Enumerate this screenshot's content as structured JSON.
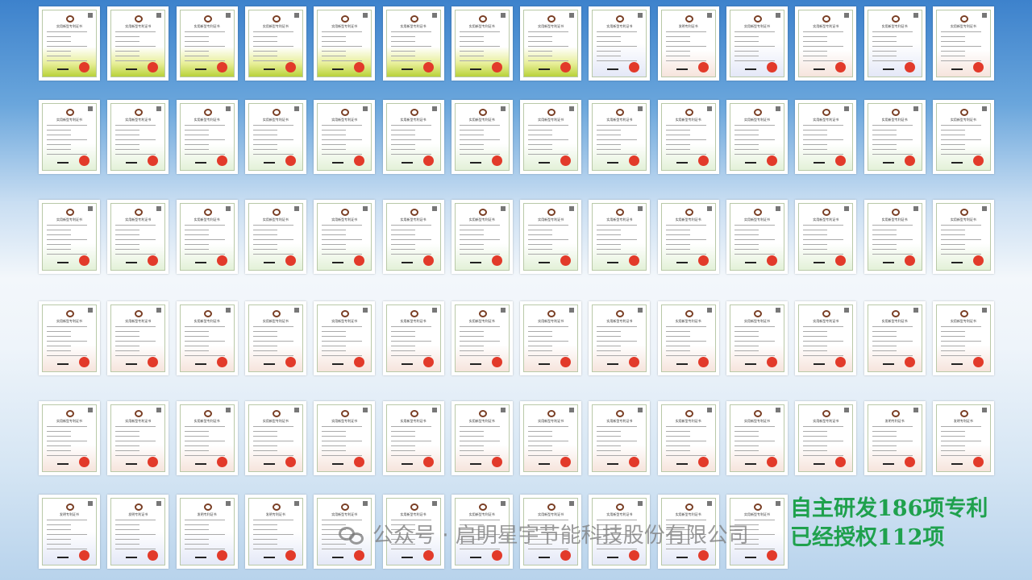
{
  "row_counts": [
    14,
    14,
    14,
    14,
    14,
    11
  ],
  "row_tints": [
    "y",
    "g",
    "g",
    "p",
    "p",
    "b"
  ],
  "cert_titles": {
    "utility": "实用新型专利证书",
    "invention": "发明专利证书"
  },
  "caption": {
    "line1": "自主研发186项专利",
    "line2": "已经授权112项"
  },
  "watermark": {
    "text": "公众号 · 启明星宇节能科技股份有限公司",
    "icon": "wechat-icon"
  },
  "colors": {
    "caption": "#1fa14d",
    "seal": "#e23a2a",
    "background_top": "#3d82cc"
  }
}
